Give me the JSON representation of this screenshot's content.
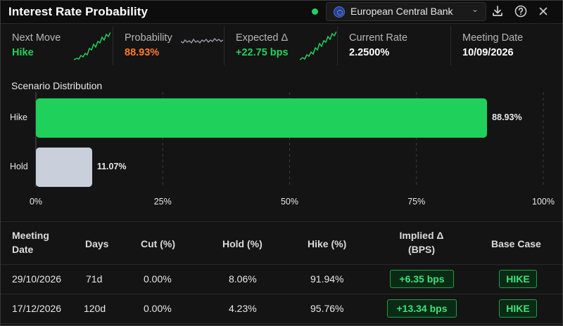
{
  "header": {
    "title": "Interest Rate Probability",
    "bank": "European Central Bank",
    "colors": {
      "status_dot": "#22d05a"
    }
  },
  "metrics": [
    {
      "label": "Next Move",
      "value": "Hike",
      "color": "#22d05a",
      "sparkline": "green-up"
    },
    {
      "label": "Probability",
      "value": "88.93%",
      "color": "#ff7a2e",
      "sparkline": "gray-flat"
    },
    {
      "label": "Expected Δ",
      "value": "+22.75 bps",
      "color": "#22d05a",
      "sparkline": "green-up"
    },
    {
      "label": "Current Rate",
      "value": "2.2500%",
      "color": "#ffffff"
    },
    {
      "label": "Meeting Date",
      "value": "10/09/2026",
      "color": "#ffffff"
    }
  ],
  "chart_title": "Scenario Distribution",
  "chart_data": {
    "type": "bar",
    "orientation": "horizontal",
    "categories": [
      "Hike",
      "Hold"
    ],
    "values": [
      88.93,
      11.07
    ],
    "value_labels": [
      "88.93%",
      "11.07%"
    ],
    "colors": [
      "#1fd15a",
      "#c9cfdb"
    ],
    "xlim": [
      0,
      100
    ],
    "x_ticks": [
      "0%",
      "25%",
      "50%",
      "75%",
      "100%"
    ],
    "x_tick_values": [
      0,
      25,
      50,
      75,
      100
    ],
    "grid": "vertical dashed",
    "title": "Scenario Distribution"
  },
  "table": {
    "headers": {
      "meeting_line1": "Meeting",
      "meeting_line2": "Date",
      "days": "Days",
      "cut": "Cut (%)",
      "hold": "Hold (%)",
      "hike": "Hike (%)",
      "implied_line1": "Implied Δ",
      "implied_line2": "(BPS)",
      "base": "Base Case"
    },
    "rows": [
      {
        "date": "29/10/2026",
        "days": "71d",
        "cut": "0.00%",
        "hold": "8.06%",
        "hike": "91.94%",
        "implied": "+6.35 bps",
        "base": "HIKE"
      },
      {
        "date": "17/12/2026",
        "days": "120d",
        "cut": "0.00%",
        "hold": "4.23%",
        "hike": "95.76%",
        "implied": "+13.34 bps",
        "base": "HIKE"
      }
    ]
  }
}
